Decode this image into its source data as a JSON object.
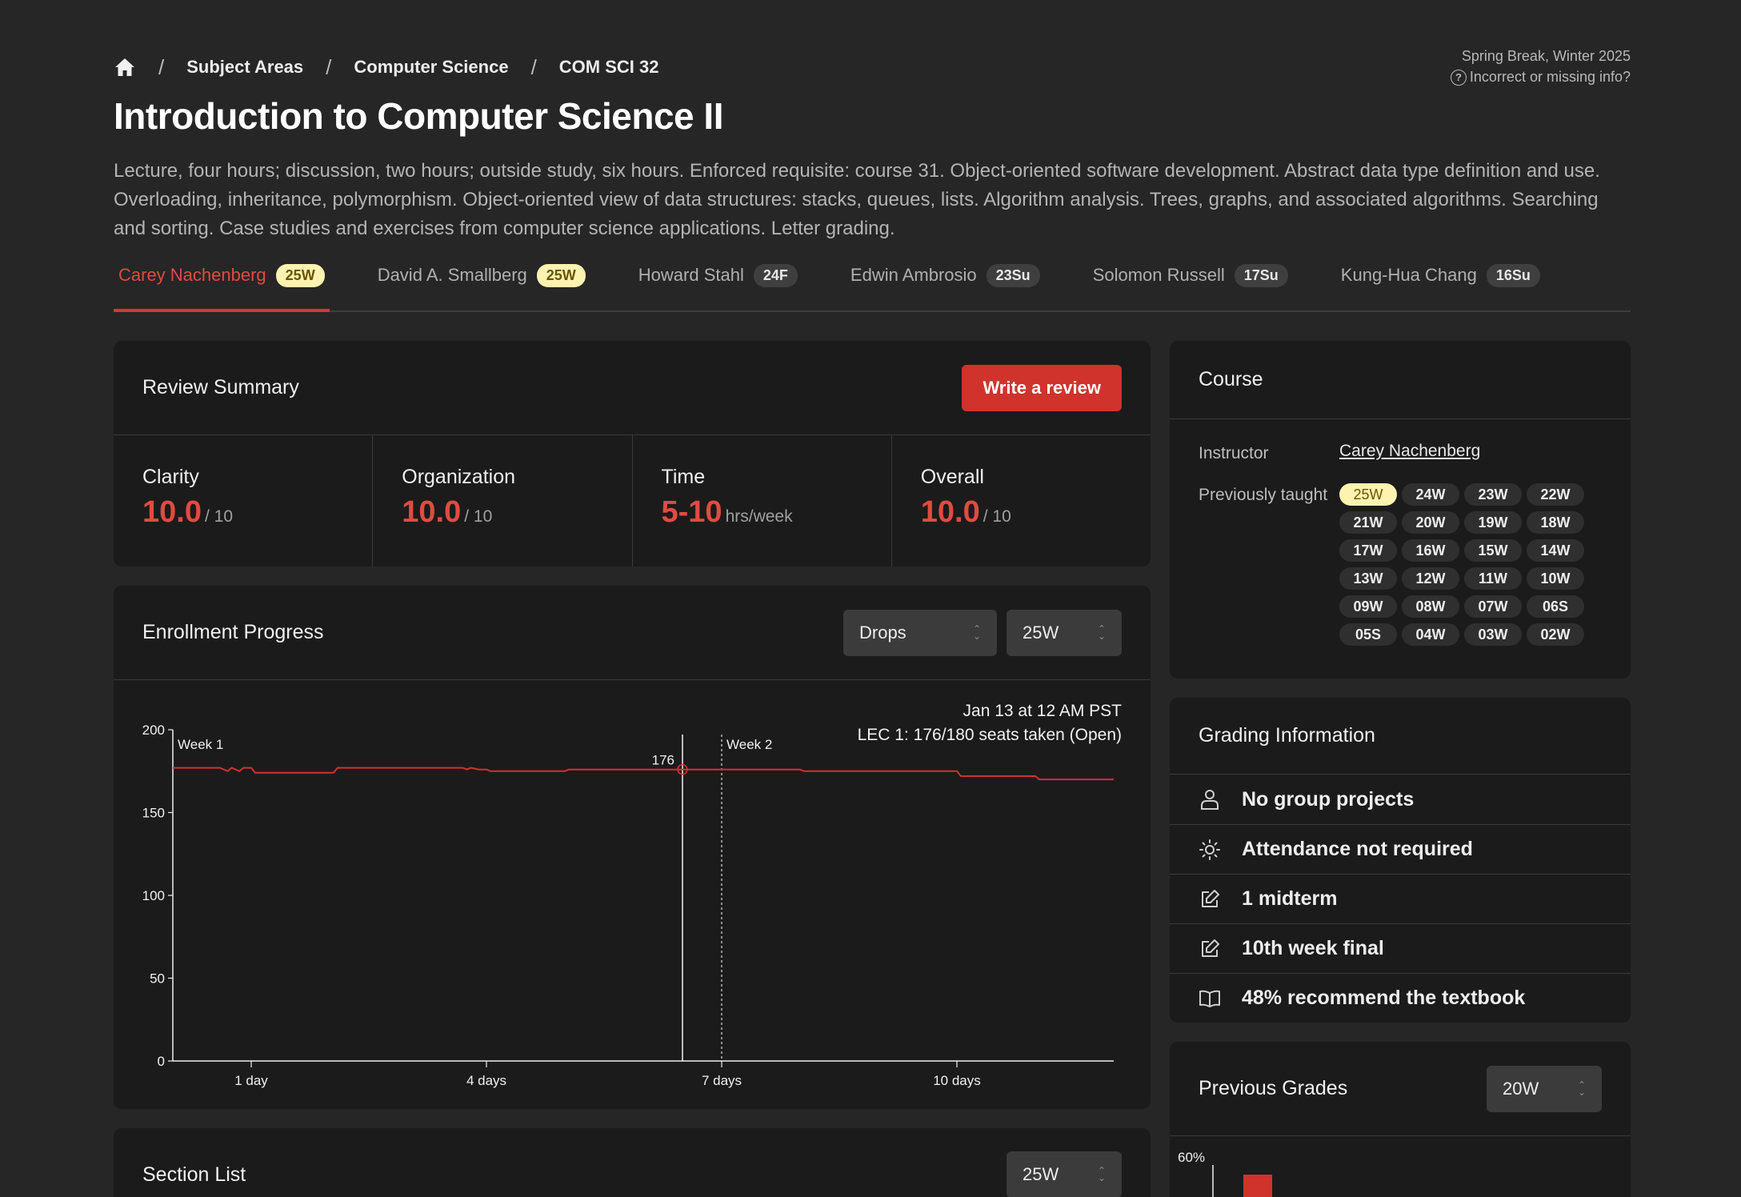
{
  "breadcrumb": {
    "home_icon": "home-icon",
    "items": [
      "Subject Areas",
      "Computer Science",
      "COM SCI 32"
    ]
  },
  "topright": {
    "term_note": "Spring Break, Winter 2025",
    "info_link": "Incorrect or missing info?"
  },
  "course": {
    "title": "Introduction to Computer Science II",
    "description": "Lecture, four hours; discussion, two hours; outside study, six hours. Enforced requisite: course 31. Object-oriented software development. Abstract data type definition and use. Overloading, inheritance, polymorphism. Object-oriented view of data structures: stacks, queues, lists. Algorithm analysis. Trees, graphs, and associated algorithms. Searching and sorting. Case studies and exercises from computer science applications. Letter grading."
  },
  "instructor_tabs": [
    {
      "name": "Carey Nachenberg",
      "term": "25W",
      "active": true,
      "badge": "yellow"
    },
    {
      "name": "David A. Smallberg",
      "term": "25W",
      "active": false,
      "badge": "yellow"
    },
    {
      "name": "Howard Stahl",
      "term": "24F",
      "active": false,
      "badge": "gray"
    },
    {
      "name": "Edwin Ambrosio",
      "term": "23Su",
      "active": false,
      "badge": "gray"
    },
    {
      "name": "Solomon Russell",
      "term": "17Su",
      "active": false,
      "badge": "gray"
    },
    {
      "name": "Kung-Hua Chang",
      "term": "16Su",
      "active": false,
      "badge": "gray"
    }
  ],
  "review_summary": {
    "title": "Review Summary",
    "write_button": "Write a review",
    "metrics": [
      {
        "label": "Clarity",
        "value": "10.0",
        "unit": "/ 10"
      },
      {
        "label": "Organization",
        "value": "10.0",
        "unit": "/ 10"
      },
      {
        "label": "Time",
        "value": "5-10",
        "unit": "hrs/week"
      },
      {
        "label": "Overall",
        "value": "10.0",
        "unit": "/ 10"
      }
    ]
  },
  "enrollment": {
    "title": "Enrollment Progress",
    "mode_select": "Drops",
    "term_select": "25W",
    "hover_date": "Jan 13 at 12 AM PST",
    "hover_detail": "LEC 1: 176/180 seats taken (Open)",
    "hover_value_label": "176"
  },
  "section_list": {
    "title": "Section List",
    "term_select": "25W"
  },
  "course_card": {
    "title": "Course",
    "instructor_label": "Instructor",
    "instructor_name": "Carey Nachenberg",
    "prev_label": "Previously taught",
    "terms": [
      "25W",
      "24W",
      "23W",
      "22W",
      "21W",
      "20W",
      "19W",
      "18W",
      "17W",
      "16W",
      "15W",
      "14W",
      "13W",
      "12W",
      "11W",
      "10W",
      "09W",
      "08W",
      "07W",
      "06S",
      "05S",
      "04W",
      "03W",
      "02W"
    ],
    "active_term": "25W"
  },
  "grading": {
    "title": "Grading Information",
    "items": [
      {
        "icon": "person-icon",
        "text": "No group projects"
      },
      {
        "icon": "sun-icon",
        "text": "Attendance not required"
      },
      {
        "icon": "edit-icon",
        "text": "1 midterm"
      },
      {
        "icon": "edit-icon",
        "text": "10th week final"
      },
      {
        "icon": "book-icon",
        "text": "48% recommend the textbook"
      }
    ]
  },
  "previous_grades": {
    "title": "Previous Grades",
    "term_select": "20W",
    "y_top_label": "60%"
  },
  "colors": {
    "accent": "#d0332c",
    "badge_yellow": "#fdf2b0",
    "background": "#262626",
    "card": "#1b1b1b"
  },
  "chart_data": {
    "type": "line",
    "title": "",
    "xlabel": "",
    "ylabel": "",
    "ylim": [
      0,
      200
    ],
    "y_ticks": [
      0,
      50,
      100,
      150,
      200
    ],
    "x_ticks": [
      "1 day",
      "4 days",
      "7 days",
      "10 days"
    ],
    "x_tick_values": [
      1,
      4,
      7,
      10
    ],
    "xlim": [
      0,
      12
    ],
    "week_markers": [
      {
        "label": "Week 1",
        "x": 0
      },
      {
        "label": "Week 2",
        "x": 7
      }
    ],
    "hover": {
      "x": 6.5,
      "y": 176
    },
    "series": [
      {
        "x": [
          0,
          0.6,
          0.7,
          0.75,
          0.85,
          0.9,
          1.0,
          1.05,
          2.05,
          2.1,
          3.7,
          3.75,
          3.8,
          3.9,
          4.0,
          4.05,
          5.0,
          5.05,
          6.5,
          8.0,
          8.05,
          10.0,
          10.05,
          11.0,
          11.05,
          12.0
        ],
        "y": [
          177,
          177,
          175,
          177,
          175,
          177,
          177,
          174,
          174,
          177,
          177,
          176,
          177,
          176,
          176,
          175,
          175,
          176,
          176,
          176,
          175,
          175,
          172,
          172,
          170,
          170
        ]
      }
    ]
  }
}
